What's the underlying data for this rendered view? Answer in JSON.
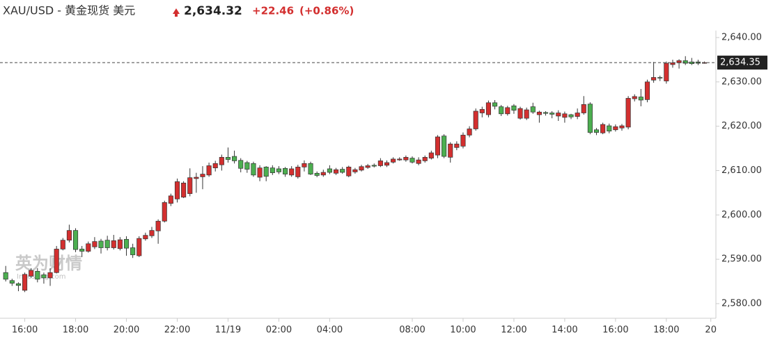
{
  "header": {
    "title": "XAU/USD - 黄金现货 美元",
    "price": "2,634.32",
    "change": "+22.46",
    "change_pct": "(+0.86%)"
  },
  "watermark": {
    "brand": "英为财情",
    "site": "Investing.com"
  },
  "chart_data": {
    "type": "candlestick",
    "open": [
      2587.0,
      2585.2,
      2584.5,
      2583.0,
      2586.2,
      2587.3,
      2586.5,
      2585.8,
      2587,
      2592.3,
      2594.3,
      2596.5,
      2592.3,
      2591.8,
      2592.8,
      2594.1,
      2594.3,
      2592.6,
      2592.4,
      2594.5,
      2592.6,
      2590.8,
      2594.6,
      2595.3,
      2596.4,
      2598.6,
      2602.6,
      2603.6,
      2604,
      2604.8,
      2608.2,
      2608.6,
      2609,
      2610.6,
      2611.3,
      2613.0,
      2613.2,
      2612.3,
      2611.8,
      2611.6,
      2608.5,
      2610.8,
      2610.6,
      2610.4,
      2610.5,
      2609,
      2608.6,
      2610.8,
      2611.6,
      2609.4,
      2609,
      2610.4,
      2609.4,
      2610.3,
      2608.8,
      2609.7,
      2610.1,
      2610.7,
      2611.2,
      2611.1,
      2611.2,
      2611.9,
      2612.4,
      2612.4,
      2612.8,
      2611.6,
      2612.2,
      2612.8,
      2613.5,
      2617.8,
      2613,
      2615.2,
      2615.5,
      2618.0,
      2619.4,
      2623,
      2622.6,
      2625.3,
      2624.4,
      2622.8,
      2624.6,
      2621.8,
      2621.8,
      2624.4,
      2622.6,
      2623.1,
      2623.0,
      2622.3,
      2622.0,
      2622.6,
      2622.2,
      2623.0,
      2625.0,
      2619.2,
      2618.5,
      2620.1,
      2619.2,
      2619.6,
      2619.8,
      2626.2,
      2626.6,
      2626,
      2630.4,
      2631.0,
      2630.2,
      2633.9,
      2634.3,
      2634.8,
      2634.5,
      2634.5,
      2634.3
    ],
    "high": [
      2588.5,
      2585.6,
      2584.8,
      2587,
      2588,
      2588,
      2587,
      2588,
      2593,
      2594.8,
      2597.8,
      2597,
      2593,
      2594,
      2595,
      2594.6,
      2595.3,
      2595.5,
      2595,
      2595.2,
      2593.5,
      2595.2,
      2596,
      2597.3,
      2599,
      2603.2,
      2604.8,
      2608.2,
      2607.6,
      2610.5,
      2609.5,
      2611,
      2611.8,
      2612.2,
      2613.6,
      2615.2,
      2614.5,
      2612.8,
      2612.2,
      2612,
      2611.2,
      2611,
      2611.2,
      2611,
      2610.8,
      2611,
      2611.3,
      2612.3,
      2612,
      2609.8,
      2610.2,
      2611.2,
      2610.6,
      2610.8,
      2611.1,
      2610.6,
      2611.3,
      2611.5,
      2611.6,
      2612.8,
      2612.3,
      2613.0,
      2613,
      2613.4,
      2613.2,
      2613,
      2613.4,
      2614.5,
      2618,
      2618.2,
      2616.4,
      2616.6,
      2618.6,
      2620,
      2624,
      2624.4,
      2625.8,
      2625.9,
      2624.8,
      2624.6,
      2625,
      2624.4,
      2624.2,
      2625.3,
      2623.5,
      2623.4,
      2623.4,
      2623.6,
      2623.3,
      2622.8,
      2624,
      2626.8,
      2625.4,
      2619.6,
      2620.8,
      2620.6,
      2620.4,
      2620.5,
      2626.8,
      2627.2,
      2628.4,
      2630.5,
      2634.5,
      2631.4,
      2634.6,
      2635,
      2635.1,
      2635.8,
      2635.4,
      2635.0,
      2634.6
    ],
    "low": [
      2585,
      2584,
      2582.8,
      2582.6,
      2585.8,
      2584.8,
      2584.5,
      2584,
      2586.8,
      2592,
      2593.8,
      2591.6,
      2590.5,
      2591.5,
      2592.3,
      2591.3,
      2592,
      2592.2,
      2592,
      2590.8,
      2590.3,
      2590.5,
      2594.2,
      2594.8,
      2593.5,
      2598.3,
      2602,
      2602.8,
      2603.8,
      2604.2,
      2605,
      2605.8,
      2608.6,
      2609.8,
      2610,
      2611.8,
      2611.6,
      2609.6,
      2609.5,
      2608.6,
      2607.6,
      2607.6,
      2609,
      2609.2,
      2608.6,
      2608.6,
      2608.2,
      2609.8,
      2609,
      2608.5,
      2608.6,
      2609.2,
      2609,
      2609.3,
      2608.5,
      2609.3,
      2609.8,
      2610.4,
      2610.7,
      2610.8,
      2610.8,
      2611.6,
      2612.2,
      2612,
      2611.6,
      2611.2,
      2611.8,
      2612.5,
      2612.8,
      2612.8,
      2611.8,
      2614.6,
      2615,
      2617.5,
      2619,
      2622,
      2622,
      2623.8,
      2622.3,
      2622.4,
      2622.8,
      2621.5,
      2621.4,
      2622.8,
      2620.8,
      2622.4,
      2621.8,
      2621.2,
      2620.8,
      2621.6,
      2621.6,
      2622.6,
      2618.2,
      2618,
      2618.2,
      2618.4,
      2618.8,
      2619,
      2619.3,
      2625.6,
      2624.5,
      2625.4,
      2629.8,
      2630.2,
      2629.6,
      2633.2,
      2633,
      2633.8,
      2633.8,
      2633.8,
      2634.1
    ],
    "close": [
      2585.5,
      2584.6,
      2584.1,
      2586.6,
      2587.5,
      2585.5,
      2585.8,
      2587.0,
      2592.3,
      2594.3,
      2596.5,
      2592.2,
      2591.8,
      2593.5,
      2594,
      2592.6,
      2592.6,
      2594.2,
      2594.4,
      2592.5,
      2591.0,
      2594.7,
      2595.4,
      2596.5,
      2598.6,
      2602.8,
      2604.3,
      2607.5,
      2607.2,
      2608.4,
      2608.5,
      2609.2,
      2611.1,
      2611.6,
      2613.0,
      2612.5,
      2612.2,
      2610.5,
      2610.3,
      2609.0,
      2610.6,
      2608.7,
      2609.5,
      2609.7,
      2609.2,
      2610.4,
      2610.8,
      2611.6,
      2609.2,
      2608.9,
      2609.6,
      2609.6,
      2610.2,
      2609.6,
      2610.8,
      2610.2,
      2610.9,
      2611.1,
      2611.0,
      2612.2,
      2611.8,
      2612.6,
      2612.6,
      2613.0,
      2611.9,
      2612.4,
      2613,
      2614.0,
      2617.6,
      2613.2,
      2616.0,
      2616.0,
      2618.0,
      2619.4,
      2623.4,
      2623.8,
      2625.3,
      2624.5,
      2622.8,
      2624.2,
      2623.6,
      2624.0,
      2623.7,
      2623.2,
      2623.2,
      2622.9,
      2622.7,
      2623.0,
      2622.8,
      2622.1,
      2623.0,
      2624.9,
      2618.6,
      2618.6,
      2620.4,
      2618.9,
      2619.9,
      2620.1,
      2626.3,
      2626.7,
      2625.9,
      2630.0,
      2631.0,
      2630.9,
      2634.2,
      2634.3,
      2634.8,
      2634.2,
      2634.1,
      2634.2,
      2634.35
    ],
    "up_color": "#d32f2f",
    "down_color": "#4caf50",
    "xlim": [
      -0.9,
      111.8
    ],
    "xticks": [
      {
        "value": 3,
        "label": "16:00"
      },
      {
        "value": 11,
        "label": "18:00"
      },
      {
        "value": 19,
        "label": "20:00"
      },
      {
        "value": 27,
        "label": "22:00"
      },
      {
        "value": 35,
        "label": "11/19"
      },
      {
        "value": 43,
        "label": "02:00"
      },
      {
        "value": 51,
        "label": "04:00"
      },
      {
        "value": 64,
        "label": "08:00"
      },
      {
        "value": 72,
        "label": "10:00"
      },
      {
        "value": 80,
        "label": "12:00"
      },
      {
        "value": 88,
        "label": "14:00"
      },
      {
        "value": 96,
        "label": "16:00"
      },
      {
        "value": 104,
        "label": "18:00"
      },
      {
        "value": 111,
        "label": "20"
      }
    ],
    "ylim": [
      2576.7,
      2641.57
    ],
    "yticks": [
      {
        "value": 2580,
        "label": "2,580.00"
      },
      {
        "value": 2590,
        "label": "2,590.00"
      },
      {
        "value": 2600,
        "label": "2,600.00"
      },
      {
        "value": 2610,
        "label": "2,610.00"
      },
      {
        "value": 2620,
        "label": "2,620.00"
      },
      {
        "value": 2630,
        "label": "2,630.00"
      },
      {
        "value": 2640,
        "label": "2,640.00"
      }
    ],
    "last_price": {
      "value": 2634.35,
      "label": "2,634.35"
    }
  }
}
